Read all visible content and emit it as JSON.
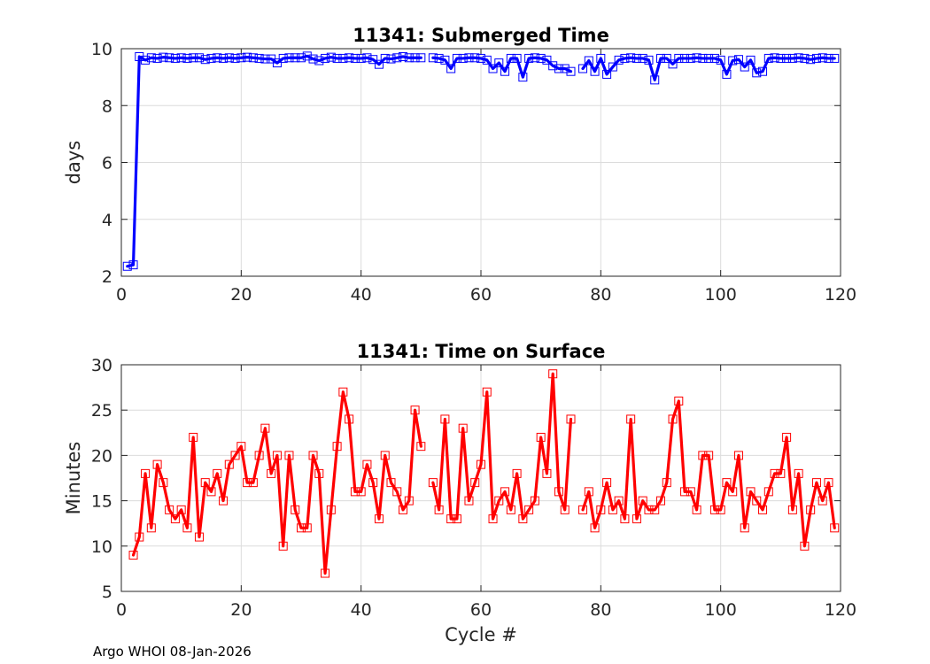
{
  "footer": "Argo WHOI 08-Jan-2026",
  "chart_data": [
    {
      "type": "line",
      "title": "11341: Submerged Time",
      "xlabel": "",
      "ylabel": "days",
      "xlim": [
        0,
        120
      ],
      "ylim": [
        2,
        10
      ],
      "xticks": [
        0,
        20,
        40,
        60,
        80,
        100,
        120
      ],
      "yticks": [
        2,
        4,
        6,
        8,
        10
      ],
      "grid": true,
      "color": "#0000ff",
      "marker": "square",
      "series": [
        {
          "x": [
            1,
            2,
            3,
            4,
            5,
            6,
            7,
            8,
            9,
            10,
            11,
            12,
            13,
            14,
            15,
            16,
            17,
            18,
            19,
            20,
            21,
            22,
            23,
            24,
            25,
            26,
            27,
            28,
            29,
            30,
            31,
            32,
            33,
            34,
            35,
            36,
            37,
            38,
            39,
            40,
            41,
            42,
            43,
            44,
            45,
            46,
            47,
            48,
            49,
            50,
            null,
            52,
            53,
            54,
            55,
            56,
            57,
            58,
            59,
            60,
            61,
            62,
            63,
            64,
            65,
            66,
            67,
            68,
            69,
            70,
            71,
            72,
            73,
            74,
            75,
            null,
            77,
            78,
            79,
            80,
            81,
            82,
            83,
            84,
            85,
            86,
            87,
            88,
            89,
            90,
            91,
            92,
            93,
            94,
            95,
            96,
            97,
            98,
            99,
            100,
            101,
            102,
            103,
            104,
            105,
            106,
            107,
            108,
            109,
            110,
            111,
            112,
            113,
            114,
            115,
            116,
            117,
            118,
            119
          ],
          "y": [
            2.35,
            2.4,
            9.72,
            9.6,
            9.68,
            9.66,
            9.7,
            9.68,
            9.66,
            9.68,
            9.66,
            9.68,
            9.68,
            9.62,
            9.66,
            9.68,
            9.66,
            9.68,
            9.66,
            9.68,
            9.7,
            9.68,
            9.66,
            9.64,
            9.64,
            9.5,
            9.66,
            9.68,
            9.68,
            9.68,
            9.74,
            9.64,
            9.58,
            9.66,
            9.7,
            9.66,
            9.66,
            9.68,
            9.66,
            9.66,
            9.68,
            9.62,
            9.45,
            9.66,
            9.64,
            9.68,
            9.72,
            9.68,
            9.68,
            9.68,
            null,
            9.68,
            9.66,
            9.6,
            9.3,
            9.66,
            9.66,
            9.68,
            9.68,
            9.66,
            9.6,
            9.3,
            9.5,
            9.2,
            9.66,
            9.66,
            9.0,
            9.66,
            9.68,
            9.66,
            9.6,
            9.4,
            9.3,
            9.3,
            9.2,
            null,
            9.3,
            9.58,
            9.2,
            9.66,
            9.1,
            9.36,
            9.6,
            9.66,
            9.68,
            9.66,
            9.66,
            9.6,
            8.9,
            9.66,
            9.66,
            9.46,
            9.66,
            9.66,
            9.66,
            9.68,
            9.66,
            9.66,
            9.66,
            9.6,
            9.1,
            9.58,
            9.62,
            9.36,
            9.6,
            9.15,
            9.2,
            9.66,
            9.68,
            9.66,
            9.66,
            9.66,
            9.68,
            9.66,
            9.62,
            9.66,
            9.68,
            9.66,
            9.66
          ]
        }
      ]
    },
    {
      "type": "line",
      "title": "11341: Time on Surface",
      "xlabel": "Cycle #",
      "ylabel": "Minutes",
      "xlim": [
        0,
        120
      ],
      "ylim": [
        5,
        30
      ],
      "xticks": [
        0,
        20,
        40,
        60,
        80,
        100,
        120
      ],
      "yticks": [
        5,
        10,
        15,
        20,
        25,
        30
      ],
      "grid": true,
      "color": "#ff0000",
      "marker": "square",
      "series": [
        {
          "x": [
            2,
            3,
            4,
            5,
            6,
            7,
            8,
            9,
            10,
            11,
            12,
            13,
            14,
            15,
            16,
            17,
            18,
            19,
            20,
            21,
            22,
            23,
            24,
            25,
            26,
            27,
            28,
            29,
            30,
            31,
            32,
            33,
            34,
            35,
            36,
            37,
            38,
            39,
            40,
            41,
            42,
            43,
            44,
            45,
            46,
            47,
            48,
            49,
            50,
            null,
            52,
            53,
            54,
            55,
            56,
            57,
            58,
            59,
            60,
            61,
            62,
            63,
            64,
            65,
            66,
            67,
            68,
            69,
            70,
            71,
            72,
            73,
            74,
            75,
            null,
            77,
            78,
            79,
            80,
            81,
            82,
            83,
            84,
            85,
            86,
            87,
            88,
            89,
            90,
            91,
            92,
            93,
            94,
            95,
            96,
            97,
            98,
            99,
            100,
            101,
            102,
            103,
            104,
            105,
            106,
            107,
            108,
            109,
            110,
            111,
            112,
            113,
            114,
            115,
            116,
            117,
            118,
            119
          ],
          "y": [
            9,
            11,
            18,
            12,
            19,
            17,
            14,
            13,
            14,
            12,
            22,
            11,
            17,
            16,
            18,
            15,
            19,
            20,
            21,
            17,
            17,
            20,
            23,
            18,
            20,
            10,
            20,
            14,
            12,
            12,
            20,
            18,
            7,
            14,
            21,
            27,
            24,
            16,
            16,
            19,
            17,
            13,
            20,
            17,
            16,
            14,
            15,
            25,
            21,
            null,
            17,
            14,
            24,
            13,
            13,
            23,
            15,
            17,
            19,
            27,
            13,
            15,
            16,
            14,
            18,
            13,
            14,
            15,
            22,
            18,
            29,
            16,
            14,
            24,
            null,
            14,
            16,
            12,
            14,
            17,
            14,
            15,
            13,
            24,
            13,
            15,
            14,
            14,
            15,
            17,
            24,
            26,
            16,
            16,
            14,
            20,
            20,
            14,
            14,
            17,
            16,
            20,
            12,
            16,
            15,
            14,
            16,
            18,
            18,
            22,
            14,
            18,
            10,
            14,
            17,
            15,
            17,
            12
          ]
        }
      ]
    }
  ]
}
